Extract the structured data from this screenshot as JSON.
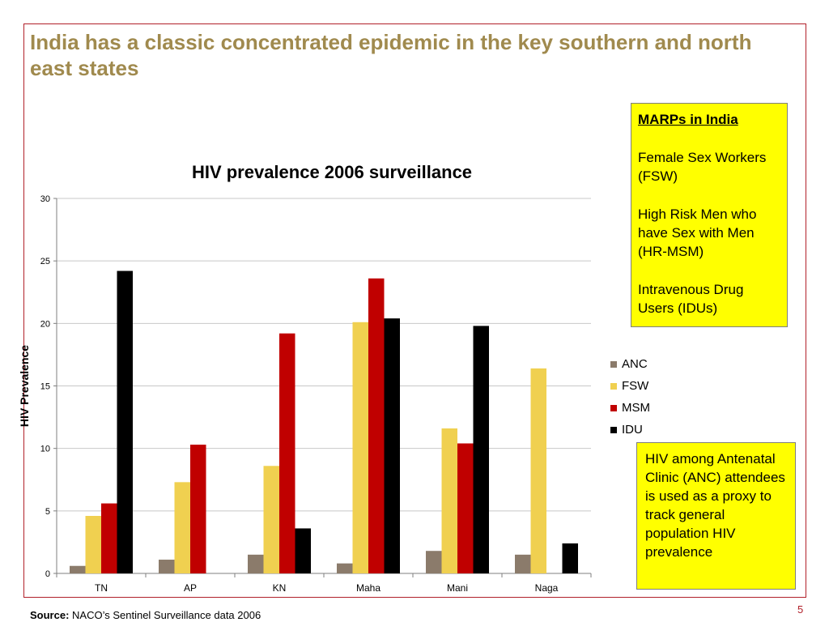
{
  "slide": {
    "title": "India has a classic concentrated epidemic in the key southern and north east states",
    "page_number": "5"
  },
  "marps_box": {
    "heading": "MARPs in India",
    "items": [
      "Female Sex Workers (FSW)",
      "High Risk Men who have Sex with Men (HR-MSM)",
      "Intravenous Drug Users (IDUs)"
    ]
  },
  "anc_box": {
    "text": "HIV among Antenatal Clinic (ANC) attendees is used as a proxy to track general population HIV prevalence"
  },
  "source": {
    "label": "Source:",
    "text": " NACO’s Sentinel Surveillance data 2006"
  },
  "chart_data": {
    "type": "bar",
    "title": "HIV prevalence 2006 surveillance",
    "xlabel": "",
    "ylabel": "HIV Prevalence",
    "ylim": [
      0,
      30
    ],
    "yticks": [
      0,
      5,
      10,
      15,
      20,
      25,
      30
    ],
    "grid": true,
    "legend_position": "right",
    "categories": [
      "TN",
      "AP",
      "KN",
      "Maha",
      "Mani",
      "Naga"
    ],
    "series": [
      {
        "name": "ANC",
        "color": "#8b7b6b",
        "values": [
          0.6,
          1.1,
          1.5,
          0.8,
          1.8,
          1.5
        ]
      },
      {
        "name": "FSW",
        "color": "#f0d050",
        "values": [
          4.6,
          7.3,
          8.6,
          20.1,
          11.6,
          16.4
        ]
      },
      {
        "name": "MSM",
        "color": "#c00000",
        "values": [
          5.6,
          10.3,
          19.2,
          23.6,
          10.4,
          null
        ]
      },
      {
        "name": "IDU",
        "color": "#000000",
        "values": [
          24.2,
          null,
          3.6,
          20.4,
          19.8,
          2.4
        ]
      }
    ]
  }
}
